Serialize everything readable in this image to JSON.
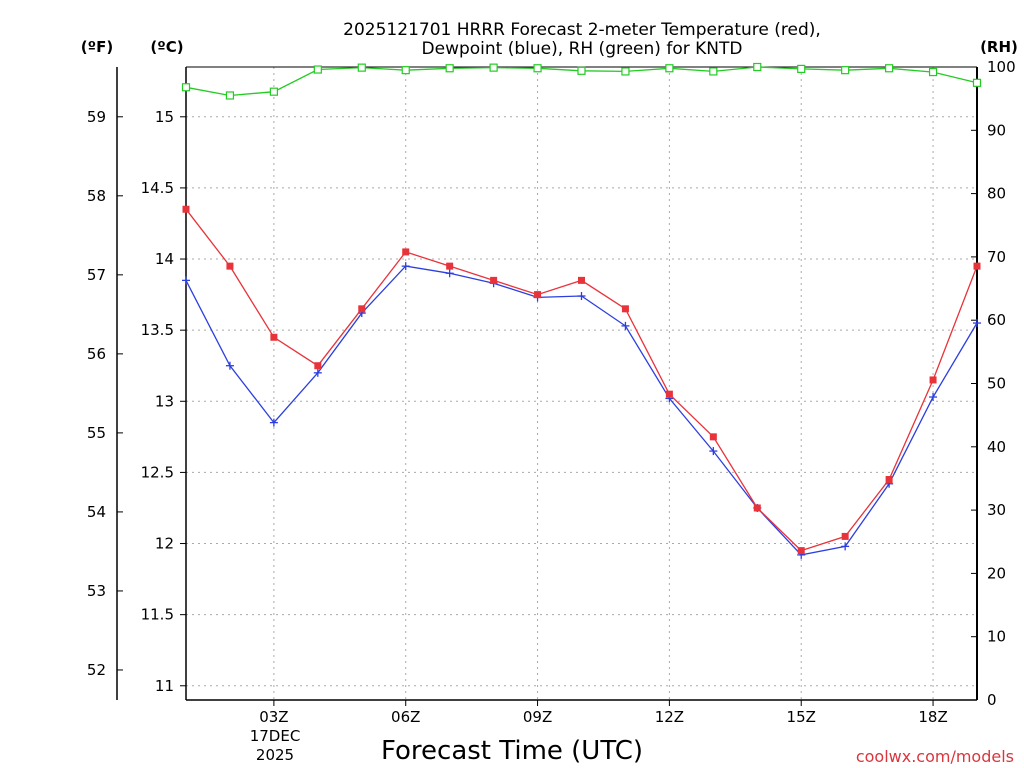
{
  "chart_data": {
    "type": "line",
    "title_line1": "2025121701 HRRR Forecast 2-meter Temperature (red),",
    "title_line2": "Dewpoint (blue), RH (green) for KNTD",
    "xlabel": "Forecast Time (UTC)",
    "date_label_day": "17DEC",
    "date_label_year": "2025",
    "left_outer_unit": "(ºF)",
    "left_inner_unit": "(ºC)",
    "right_unit": "(RH)",
    "watermark": "coolwx.com/models",
    "x_hours": [
      1,
      2,
      3,
      4,
      5,
      6,
      7,
      8,
      9,
      10,
      11,
      12,
      13,
      14,
      15,
      16,
      17,
      18,
      19
    ],
    "xlim": [
      1,
      19
    ],
    "x_ticks": [
      {
        "hour": 3,
        "label": "03Z"
      },
      {
        "hour": 6,
        "label": "06Z"
      },
      {
        "hour": 9,
        "label": "09Z"
      },
      {
        "hour": 12,
        "label": "12Z"
      },
      {
        "hour": 15,
        "label": "15Z"
      },
      {
        "hour": 18,
        "label": "18Z"
      }
    ],
    "ylim_c": [
      10.9,
      15.35
    ],
    "y_ticks_c": [
      "11",
      "11.5",
      "12",
      "12.5",
      "13",
      "13.5",
      "14",
      "14.5",
      "15"
    ],
    "y_ticks_f": [
      "52",
      "53",
      "54",
      "55",
      "56",
      "57",
      "58",
      "59"
    ],
    "ylim_rh": [
      0,
      100
    ],
    "y_ticks_rh": [
      "0",
      "10",
      "20",
      "30",
      "40",
      "50",
      "60",
      "70",
      "80",
      "90",
      "100"
    ],
    "series": [
      {
        "name": "Temperature",
        "unit": "C",
        "color": "#e8333a",
        "marker": "filled-square",
        "values": [
          14.35,
          13.95,
          13.45,
          13.25,
          13.65,
          14.05,
          13.95,
          13.85,
          13.75,
          13.85,
          13.65,
          13.05,
          12.75,
          12.25,
          11.95,
          12.05,
          12.45,
          13.15,
          13.95
        ]
      },
      {
        "name": "Dewpoint",
        "unit": "C",
        "color": "#2b3fe0",
        "marker": "plus",
        "values": [
          13.85,
          13.25,
          12.85,
          13.2,
          13.62,
          13.95,
          13.9,
          13.83,
          13.73,
          13.74,
          13.53,
          13.02,
          12.65,
          12.25,
          11.92,
          11.98,
          12.42,
          13.03,
          13.55
        ]
      },
      {
        "name": "RH",
        "unit": "%",
        "color": "#22cc22",
        "marker": "open-square",
        "values": [
          96.8,
          95.5,
          96.1,
          99.6,
          99.9,
          99.5,
          99.8,
          99.9,
          99.8,
          99.4,
          99.3,
          99.8,
          99.3,
          100.0,
          99.7,
          99.5,
          99.8,
          99.2,
          97.5
        ]
      }
    ],
    "grid": true,
    "grid_style": "dotted"
  }
}
